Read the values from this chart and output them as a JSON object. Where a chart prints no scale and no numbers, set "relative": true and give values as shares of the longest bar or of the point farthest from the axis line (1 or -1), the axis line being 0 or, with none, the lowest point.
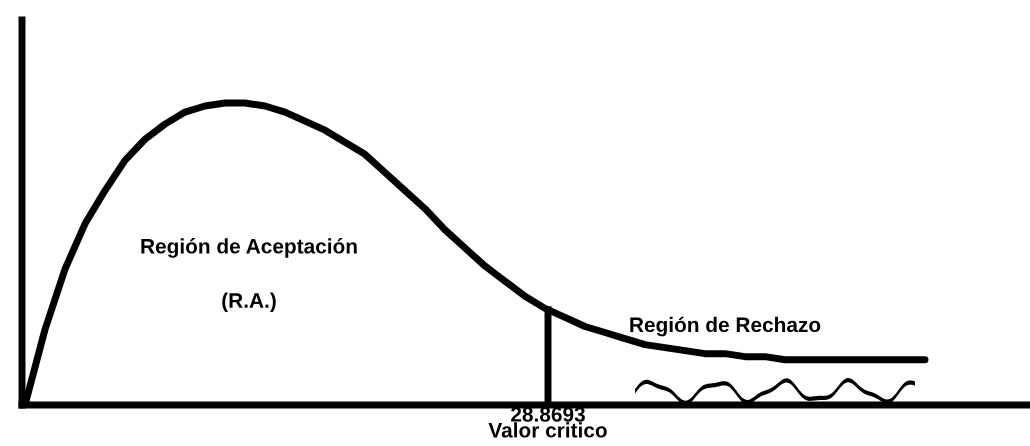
{
  "chart_data": {
    "type": "line",
    "relative": true,
    "xlabel": "Valor critico",
    "categories": [
      null,
      null,
      null,
      null,
      null,
      null,
      null,
      null,
      null,
      null,
      null,
      null,
      null,
      null,
      null,
      null,
      null,
      null,
      null,
      null,
      null,
      null,
      null,
      null,
      null,
      null,
      null,
      null,
      null,
      null,
      null,
      null,
      null,
      null,
      null,
      null,
      null,
      null,
      null,
      null,
      null,
      null,
      null,
      null,
      null,
      null
    ],
    "series": [
      {
        "color": "#000000",
        "values": [
          0,
          0.25,
          0.45,
          0.6,
          0.71,
          0.81,
          0.88,
          0.93,
          0.97,
          0.99,
          1,
          1,
          0.99,
          0.97,
          0.94,
          0.91,
          0.87,
          0.83,
          0.77,
          0.71,
          0.65,
          0.58,
          0.52,
          0.46,
          0.41,
          0.36,
          0.32,
          0.29,
          0.26,
          0.24,
          0.22,
          0.2,
          0.19,
          0.18,
          0.17,
          0.17,
          0.16,
          0.16,
          0.15,
          0.15,
          0.15,
          0.15,
          0.15,
          0.15,
          0.15,
          0.15
        ]
      }
    ],
    "annotations": [
      "Región de Aceptación",
      "(R.A.)",
      "Región de Rechazo",
      "28.8693"
    ],
    "grid": false,
    "legend": false
  }
}
